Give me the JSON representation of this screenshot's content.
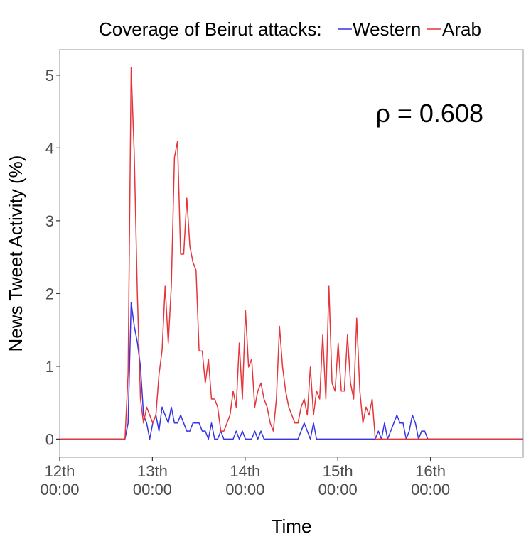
{
  "chart_data": {
    "type": "line",
    "legend": {
      "title": "Coverage of Beirut attacks:",
      "placement": "top"
    },
    "xlabel": "Time",
    "ylabel": "News Tweet Activity (%)",
    "x_unit": "hours",
    "xlim": [
      0,
      120
    ],
    "ylim": [
      -0.25,
      5.35
    ],
    "yticks": [
      0,
      1,
      2,
      3,
      4,
      5
    ],
    "xticks": [
      {
        "value": 0,
        "line1": "12th",
        "line2": "00:00"
      },
      {
        "value": 24,
        "line1": "13th",
        "line2": "00:00"
      },
      {
        "value": 48,
        "line1": "14th",
        "line2": "00:00"
      },
      {
        "value": 72,
        "line1": "15th",
        "line2": "00:00"
      },
      {
        "value": 96,
        "line1": "16th",
        "line2": "00:00"
      }
    ],
    "annotation": "ρ = 0.608",
    "grid": false,
    "series": [
      {
        "name": "Western",
        "color": "#3535e6",
        "x": [
          0,
          16.9,
          17.7,
          18.5,
          19.3,
          20.1,
          20.9,
          21.7,
          22.5,
          23.3,
          24.1,
          24.9,
          25.7,
          26.5,
          27.3,
          28.1,
          28.9,
          29.7,
          30.5,
          31.3,
          32.1,
          32.9,
          33.7,
          34.5,
          35.3,
          36.1,
          36.9,
          37.7,
          38.5,
          39.3,
          40.1,
          40.9,
          41.7,
          42.5,
          43.3,
          44.1,
          44.9,
          45.7,
          46.5,
          47.3,
          48.1,
          48.9,
          49.7,
          50.5,
          51.3,
          52.1,
          52.9,
          53.7,
          55.3,
          56.9,
          58.5,
          60.1,
          61.7,
          62.5,
          63.3,
          64.1,
          64.9,
          65.7,
          66.5,
          67.3,
          68.1,
          68.9,
          70.5,
          72.1,
          73.7,
          75.3,
          76.9,
          78.5,
          80.1,
          81.7,
          82.5,
          83.3,
          84.1,
          84.9,
          85.7,
          86.5,
          87.3,
          88.1,
          88.9,
          89.7,
          90.5,
          91.3,
          92.1,
          92.9,
          93.7,
          94.5,
          95.3,
          96.1,
          96.9,
          97.7,
          120
        ],
        "y": [
          0,
          0,
          0.22,
          1.88,
          1.55,
          1.33,
          1.0,
          0.33,
          0.22,
          0.0,
          0.22,
          0.33,
          0.11,
          0.44,
          0.33,
          0.22,
          0.44,
          0.22,
          0.22,
          0.33,
          0.22,
          0.11,
          0.11,
          0.22,
          0.22,
          0.22,
          0.11,
          0.11,
          0.0,
          0.22,
          0.0,
          0.0,
          0.11,
          0.0,
          0.0,
          0.0,
          0.0,
          0.11,
          0.0,
          0.11,
          0.0,
          0.0,
          0.0,
          0.11,
          0.0,
          0.11,
          0.0,
          0.0,
          0.0,
          0.0,
          0.0,
          0.0,
          0.0,
          0.11,
          0.22,
          0.11,
          0.0,
          0.22,
          0.0,
          0.0,
          0.0,
          0.0,
          0.0,
          0.0,
          0.0,
          0.0,
          0.0,
          0.0,
          0.0,
          0.0,
          0.11,
          0.0,
          0.22,
          0.0,
          0.11,
          0.22,
          0.33,
          0.22,
          0.22,
          0.0,
          0.11,
          0.33,
          0.22,
          0.0,
          0.11,
          0.11,
          0.0,
          0.0,
          0.0,
          0.0,
          0
        ]
      },
      {
        "name": "Arab",
        "color": "#e6353b",
        "x": [
          0,
          16.9,
          17.7,
          18.5,
          19.3,
          20.1,
          20.9,
          21.7,
          22.5,
          23.3,
          24.1,
          24.9,
          25.7,
          26.5,
          27.3,
          28.1,
          28.9,
          29.7,
          30.5,
          31.3,
          32.1,
          32.9,
          33.7,
          34.5,
          35.3,
          36.1,
          36.9,
          37.7,
          38.5,
          39.3,
          40.1,
          40.9,
          41.7,
          42.5,
          43.3,
          44.1,
          44.9,
          45.7,
          46.5,
          47.3,
          48.1,
          48.9,
          49.7,
          50.5,
          51.3,
          52.1,
          52.9,
          53.7,
          54.5,
          55.3,
          56.1,
          56.9,
          57.7,
          58.5,
          59.3,
          60.1,
          60.9,
          61.7,
          62.5,
          63.3,
          64.1,
          64.9,
          65.7,
          66.5,
          67.3,
          68.1,
          68.9,
          69.7,
          70.5,
          71.3,
          72.1,
          72.9,
          73.7,
          74.5,
          75.3,
          76.1,
          76.9,
          77.7,
          78.5,
          79.3,
          80.1,
          80.9,
          81.7,
          82.5,
          83.3,
          84.1,
          84.9,
          85.7,
          86.5,
          87.3,
          88.1,
          88.9,
          89.7,
          90.5,
          91.3,
          92.1,
          92.9,
          93.7,
          94.5,
          95.3,
          96.1,
          96.9,
          97.7,
          120
        ],
        "y": [
          0,
          0,
          0.9,
          5.1,
          3.9,
          2.0,
          0.55,
          0.22,
          0.44,
          0.33,
          0.22,
          0.33,
          0.88,
          1.22,
          2.1,
          1.32,
          2.1,
          3.87,
          4.09,
          2.54,
          2.54,
          3.31,
          2.65,
          2.43,
          2.32,
          1.21,
          1.21,
          0.77,
          1.1,
          0.55,
          0.55,
          0.44,
          0.11,
          0.11,
          0.22,
          0.33,
          0.66,
          0.44,
          1.32,
          0.55,
          1.77,
          0.99,
          1.1,
          0.44,
          0.66,
          0.77,
          0.55,
          0.44,
          0.22,
          0.11,
          0.55,
          1.55,
          0.99,
          0.66,
          0.44,
          0.33,
          0.22,
          0.22,
          0.44,
          0.55,
          0.33,
          0.99,
          0.33,
          0.66,
          0.55,
          1.43,
          0.55,
          2.1,
          0.77,
          0.66,
          1.32,
          0.66,
          0.66,
          1.43,
          0.77,
          0.55,
          1.66,
          0.66,
          0.22,
          0.44,
          0.33,
          0.55,
          0.0,
          0.0,
          0.0,
          0.0,
          0.0,
          0.0,
          0.0,
          0.0,
          0.0,
          0.0,
          0.0,
          0.0,
          0.0,
          0.0,
          0.0,
          0.0,
          0.0,
          0.0,
          0.0,
          0.0,
          0.0,
          0
        ]
      }
    ]
  }
}
